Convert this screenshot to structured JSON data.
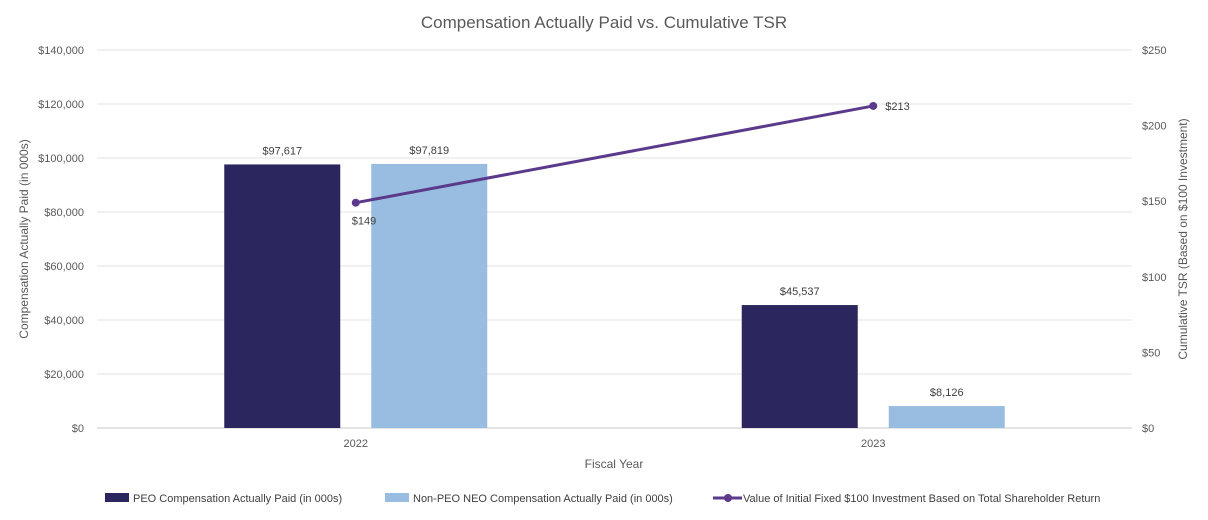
{
  "chart_data": {
    "type": "bar",
    "title": "Compensation Actually Paid vs. Cumulative TSR",
    "xlabel": "Fiscal Year",
    "ylabel": "Compensation Actually Paid (in 000s)",
    "y2label": "Cumulative TSR (Based on $100 Investment)",
    "categories": [
      "2022",
      "2023"
    ],
    "ylim": [
      0,
      140000
    ],
    "y2lim": [
      0,
      250
    ],
    "yticks": [
      "$0",
      "$20,000",
      "$40,000",
      "$60,000",
      "$80,000",
      "$100,000",
      "$120,000",
      "$140,000"
    ],
    "y2ticks": [
      "$0",
      "$50",
      "$100",
      "$150",
      "$200",
      "$250"
    ],
    "series": [
      {
        "name": "PEO Compensation Actually Paid (in 000s)",
        "kind": "bar",
        "axis": "left",
        "color": "#2b275e",
        "values": [
          97617,
          45537
        ],
        "labels": [
          "$97,617",
          "$45,537"
        ]
      },
      {
        "name": "Non-PEO NEO Compensation Actually Paid (in 000s)",
        "kind": "bar",
        "axis": "left",
        "color": "#98bde0",
        "values": [
          97819,
          8126
        ],
        "labels": [
          "$97,819",
          "$8,126"
        ]
      },
      {
        "name": "Value of Initial Fixed $100 Investment Based on Total Shareholder Return",
        "kind": "line",
        "axis": "right",
        "color": "#5b3a8c",
        "values": [
          149,
          213
        ],
        "labels": [
          "$149",
          "$213"
        ]
      }
    ],
    "grid": true,
    "legend": "bottom"
  }
}
